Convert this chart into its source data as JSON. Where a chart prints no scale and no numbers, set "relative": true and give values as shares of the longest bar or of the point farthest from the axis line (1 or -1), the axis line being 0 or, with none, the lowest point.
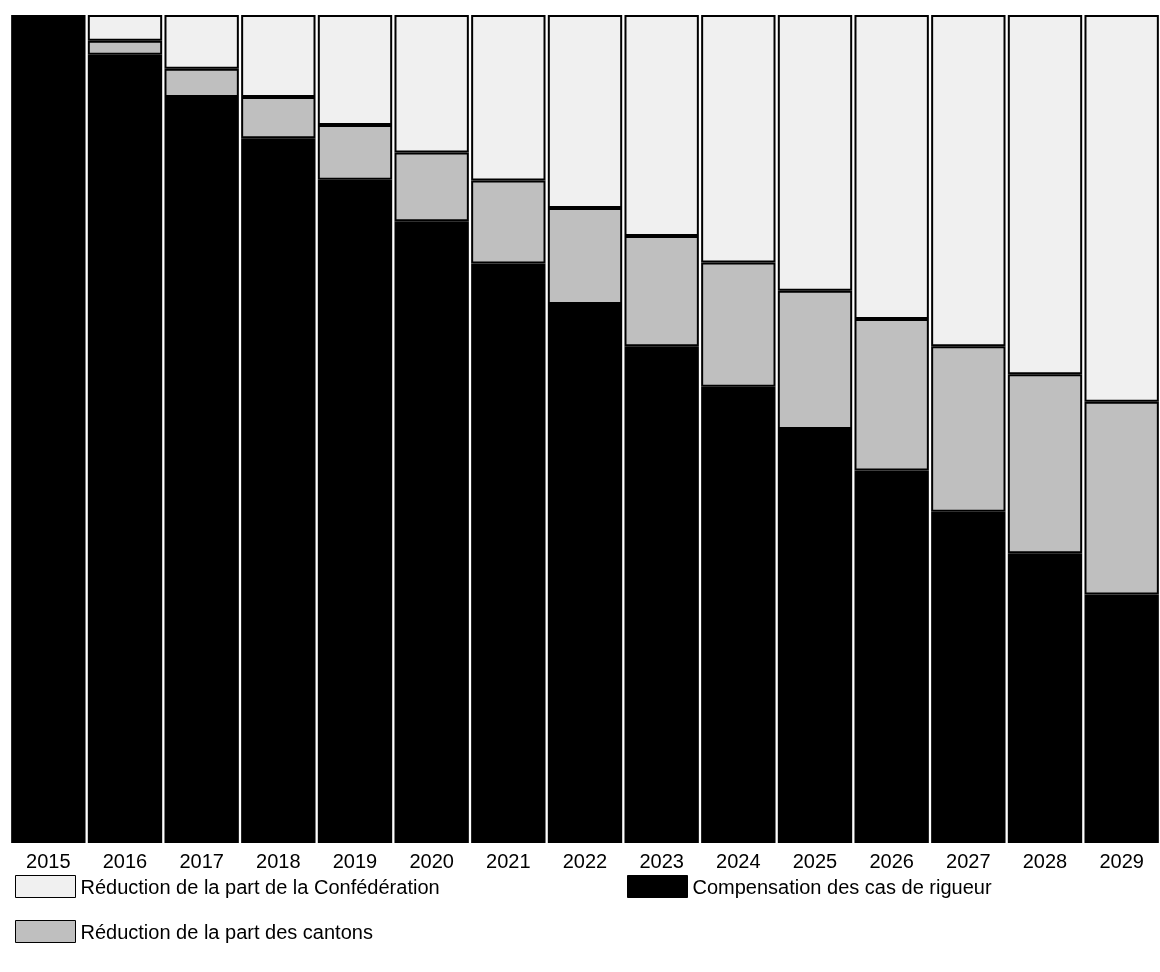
{
  "chart_data": {
    "type": "bar",
    "relative": true,
    "stacked": true,
    "legend": "bottom",
    "categories": [
      "2015",
      "2016",
      "2017",
      "2018",
      "2019",
      "2020",
      "2021",
      "2022",
      "2023",
      "2024",
      "2025",
      "2026",
      "2027",
      "2028",
      "2029"
    ],
    "series": [
      {
        "name": "Compensation des cas de rigueur",
        "color": "#000000",
        "values": [
          1,
          0.952,
          0.901,
          0.851,
          0.801,
          0.751,
          0.7,
          0.651,
          0.6,
          0.551,
          0.5,
          0.45,
          0.4,
          0.35,
          0.3
        ]
      },
      {
        "name": "Réduction de la part des cantons",
        "color": "#bfbfbf",
        "values": [
          0,
          0.017,
          0.034,
          0.05,
          0.066,
          0.083,
          0.1,
          0.116,
          0.133,
          0.15,
          0.167,
          0.183,
          0.2,
          0.216,
          0.233
        ]
      },
      {
        "name": "Réduction de la part de la Confédération",
        "color": "#f0f0f0",
        "values": [
          0,
          0.031,
          0.065,
          0.099,
          0.133,
          0.166,
          0.2,
          0.233,
          0.267,
          0.299,
          0.333,
          0.367,
          0.4,
          0.434,
          0.467
        ]
      }
    ]
  }
}
